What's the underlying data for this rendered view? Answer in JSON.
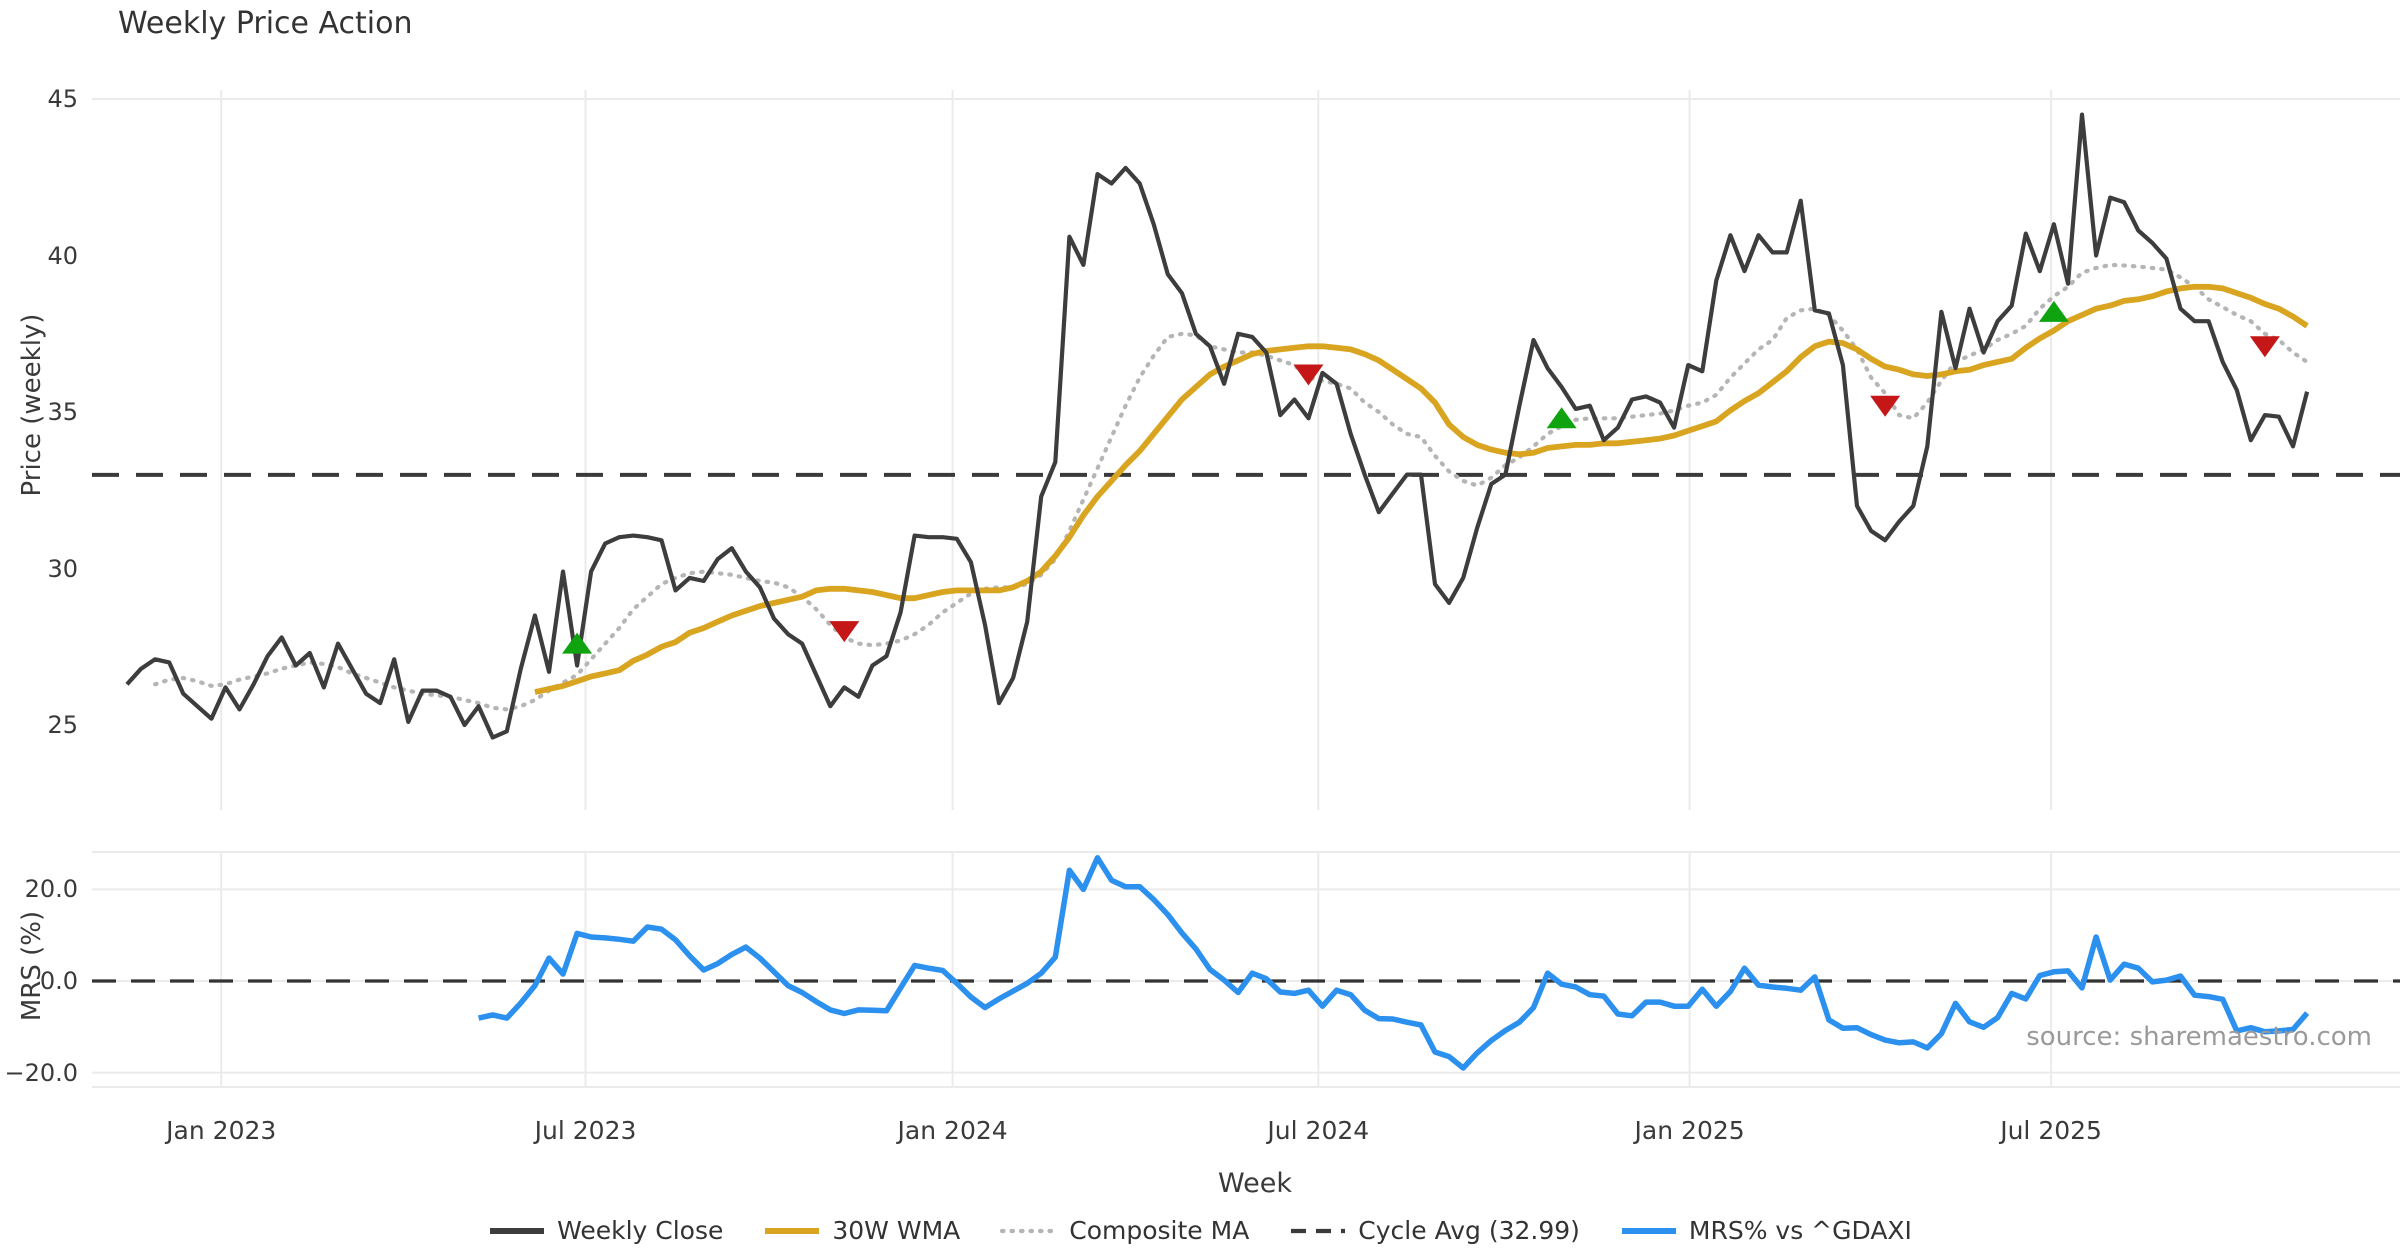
{
  "title": "Weekly Price Action",
  "source_note": "source: sharemaestro.com",
  "axes": {
    "xlabel": "Week",
    "xticks": [
      {
        "week": 6.7,
        "label": "Jan 2023"
      },
      {
        "week": 32.6,
        "label": "Jul 2023"
      },
      {
        "week": 58.7,
        "label": "Jan 2024"
      },
      {
        "week": 84.7,
        "label": "Jul 2024"
      },
      {
        "week": 111.1,
        "label": "Jan 2025"
      },
      {
        "week": 136.8,
        "label": "Jul 2025"
      }
    ],
    "price_panel": {
      "ylabel": "Price (weekly)",
      "yticks": [
        45,
        40,
        35,
        30,
        25
      ],
      "ylim": [
        22.6,
        45.3
      ]
    },
    "mrs_panel": {
      "ylabel": "MRS (%)",
      "ytick_labels": [
        "20.0",
        "0.0",
        "−20.0"
      ],
      "yticks": [
        20,
        0,
        -20
      ],
      "ylim": [
        -23.4,
        28.2
      ]
    }
  },
  "legend": {
    "items": [
      {
        "label": "Weekly Close",
        "color": "#3d3d3d",
        "style": "solid"
      },
      {
        "label": "30W WMA",
        "color": "#d9a521",
        "style": "solid"
      },
      {
        "label": "Composite MA",
        "color": "#b5b5b5",
        "style": "dotted"
      },
      {
        "label": "Cycle Avg (32.99)",
        "color": "#3a3a3a",
        "style": "dashed"
      },
      {
        "label": "MRS% vs ^GDAXI",
        "color": "#2b90ee",
        "style": "solid"
      }
    ]
  },
  "colors": {
    "close": "#3d3d3d",
    "wma": "#d9a521",
    "composite": "#b5b5b5",
    "cycle_avg": "#3a3a3a",
    "mrs": "#2b90ee",
    "buy": "#10a310",
    "sell": "#c51717",
    "grid": "#ebebeb",
    "text": "#3a3a3a",
    "source": "#9a9a9a"
  },
  "chart_data": {
    "type": "line",
    "x_unit": "week_index",
    "n_weeks": 156,
    "cycle_avg": 32.99,
    "grid": true,
    "legend_position": "bottom-center",
    "series": [
      {
        "name": "Weekly Close",
        "panel": "price",
        "color": "#3d3d3d",
        "values": [
          26.3,
          26.8,
          27.1,
          27.0,
          26.0,
          25.6,
          25.2,
          26.2,
          25.5,
          26.3,
          27.2,
          27.8,
          26.9,
          27.3,
          26.2,
          27.6,
          26.8,
          26.0,
          25.7,
          27.1,
          25.1,
          26.1,
          26.1,
          25.9,
          25.0,
          25.6,
          24.6,
          24.8,
          26.8,
          28.5,
          26.7,
          29.9,
          26.9,
          29.9,
          30.8,
          31.0,
          31.05,
          31.0,
          30.9,
          29.3,
          29.7,
          29.6,
          30.3,
          30.65,
          29.9,
          29.4,
          28.4,
          27.9,
          27.6,
          26.6,
          25.6,
          26.2,
          25.9,
          26.9,
          27.2,
          28.6,
          31.05,
          31.0,
          31.0,
          30.95,
          30.2,
          28.2,
          25.7,
          26.5,
          28.3,
          32.3,
          33.4,
          40.6,
          39.7,
          42.6,
          42.3,
          42.8,
          42.3,
          41.0,
          39.4,
          38.8,
          37.5,
          37.1,
          35.9,
          37.5,
          37.4,
          36.9,
          34.9,
          35.4,
          34.8,
          36.25,
          35.9,
          34.3,
          33.0,
          31.8,
          32.4,
          33.0,
          33.0,
          29.5,
          28.9,
          29.7,
          31.3,
          32.7,
          33.0,
          35.2,
          37.3,
          36.4,
          35.8,
          35.1,
          35.2,
          34.1,
          34.5,
          35.4,
          35.5,
          35.3,
          34.5,
          36.5,
          36.3,
          39.2,
          40.65,
          39.5,
          40.65,
          40.1,
          40.1,
          41.75,
          38.25,
          38.15,
          36.5,
          32.0,
          31.2,
          30.9,
          31.5,
          32.0,
          33.9,
          38.2,
          36.4,
          38.3,
          36.9,
          37.9,
          38.4,
          40.7,
          39.5,
          41.0,
          39.1,
          44.5,
          40.0,
          41.85,
          41.7,
          40.8,
          40.4,
          39.9,
          38.3,
          37.9,
          37.9,
          36.6,
          35.7,
          34.1,
          34.9,
          34.85,
          33.9,
          35.65
        ]
      },
      {
        "name": "30W WMA",
        "panel": "price",
        "color": "#d9a521",
        "values": [
          null,
          null,
          null,
          null,
          null,
          null,
          null,
          null,
          null,
          null,
          null,
          null,
          null,
          null,
          null,
          null,
          null,
          null,
          null,
          null,
          null,
          null,
          null,
          null,
          null,
          null,
          null,
          null,
          null,
          26.05,
          26.15,
          26.25,
          26.4,
          26.55,
          26.65,
          26.75,
          27.05,
          27.25,
          27.5,
          27.65,
          27.95,
          28.1,
          28.3,
          28.5,
          28.65,
          28.8,
          28.9,
          29.0,
          29.1,
          29.3,
          29.35,
          29.35,
          29.3,
          29.25,
          29.15,
          29.05,
          29.05,
          29.15,
          29.25,
          29.3,
          29.3,
          29.3,
          29.3,
          29.4,
          29.6,
          29.9,
          30.4,
          31.0,
          31.7,
          32.3,
          32.8,
          33.3,
          33.75,
          34.3,
          34.85,
          35.4,
          35.8,
          36.2,
          36.45,
          36.65,
          36.85,
          36.95,
          37.0,
          37.05,
          37.1,
          37.1,
          37.05,
          37.0,
          36.85,
          36.65,
          36.35,
          36.05,
          35.75,
          35.3,
          34.6,
          34.2,
          33.95,
          33.8,
          33.7,
          33.65,
          33.7,
          33.85,
          33.9,
          33.95,
          33.95,
          34.0,
          34.0,
          34.05,
          34.1,
          34.15,
          34.25,
          34.4,
          34.55,
          34.7,
          35.05,
          35.35,
          35.6,
          35.95,
          36.3,
          36.75,
          37.1,
          37.25,
          37.2,
          37.0,
          36.7,
          36.45,
          36.35,
          36.2,
          36.15,
          36.2,
          36.3,
          36.35,
          36.5,
          36.6,
          36.7,
          37.05,
          37.35,
          37.6,
          37.9,
          38.1,
          38.3,
          38.4,
          38.55,
          38.6,
          38.7,
          38.85,
          38.95,
          39.0,
          39.0,
          38.95,
          38.8,
          38.65,
          38.45,
          38.3,
          38.05,
          37.75
        ]
      },
      {
        "name": "Composite MA",
        "panel": "price",
        "color": "#b5b5b5",
        "values": [
          null,
          null,
          26.3,
          26.45,
          26.5,
          26.4,
          26.25,
          26.3,
          26.45,
          26.55,
          26.65,
          26.8,
          26.9,
          27.0,
          26.95,
          26.85,
          26.65,
          26.5,
          26.35,
          26.2,
          26.1,
          26.0,
          25.95,
          25.9,
          25.8,
          25.7,
          25.55,
          25.5,
          25.6,
          25.8,
          26.1,
          26.35,
          26.6,
          27.1,
          27.6,
          28.1,
          28.7,
          29.1,
          29.5,
          29.7,
          29.85,
          29.9,
          29.85,
          29.8,
          29.7,
          29.6,
          29.55,
          29.4,
          29.1,
          28.7,
          28.2,
          27.8,
          27.6,
          27.55,
          27.6,
          27.7,
          27.9,
          28.2,
          28.6,
          28.9,
          29.2,
          29.35,
          29.4,
          29.4,
          29.5,
          29.8,
          30.3,
          31.2,
          32.2,
          33.2,
          34.2,
          35.2,
          36.1,
          36.8,
          37.4,
          37.5,
          37.45,
          37.1,
          37.0,
          36.9,
          36.9,
          36.8,
          36.65,
          36.5,
          36.1,
          36.0,
          35.9,
          35.75,
          35.3,
          35.0,
          34.6,
          34.3,
          34.2,
          33.6,
          33.1,
          32.8,
          32.65,
          32.9,
          33.3,
          33.55,
          33.9,
          34.3,
          34.55,
          34.75,
          34.8,
          34.8,
          34.8,
          34.85,
          34.9,
          34.95,
          35.05,
          35.2,
          35.3,
          35.55,
          36.1,
          36.55,
          37.0,
          37.3,
          38.0,
          38.25,
          38.3,
          38.1,
          37.6,
          37.0,
          36.1,
          35.6,
          34.9,
          34.8,
          35.3,
          36.0,
          36.6,
          36.8,
          37.0,
          37.3,
          37.5,
          37.75,
          38.3,
          38.7,
          39.0,
          39.45,
          39.6,
          39.7,
          39.68,
          39.65,
          39.6,
          39.55,
          39.3,
          39.0,
          38.6,
          38.35,
          38.1,
          37.9,
          37.5,
          37.3,
          36.9,
          36.6
        ]
      },
      {
        "name": "MRS% vs ^GDAXI",
        "panel": "mrs",
        "color": "#2b90ee",
        "values": [
          null,
          null,
          null,
          null,
          null,
          null,
          null,
          null,
          null,
          null,
          null,
          null,
          null,
          null,
          null,
          null,
          null,
          null,
          null,
          null,
          null,
          null,
          null,
          null,
          null,
          -8.1,
          -7.4,
          -8.1,
          -4.8,
          -1.0,
          5.0,
          1.5,
          10.4,
          9.6,
          9.4,
          9.1,
          8.7,
          11.8,
          11.3,
          9.0,
          5.5,
          2.4,
          3.8,
          5.8,
          7.4,
          5.0,
          2.0,
          -1.0,
          -2.5,
          -4.5,
          -6.3,
          -7.1,
          -6.3,
          -6.4,
          -6.5,
          -1.5,
          3.4,
          2.8,
          2.3,
          -0.5,
          -3.5,
          -5.8,
          -3.9,
          -2.2,
          -0.5,
          1.7,
          5.2,
          24.2,
          20.0,
          26.9,
          22.0,
          20.6,
          20.6,
          17.8,
          14.5,
          10.5,
          7.0,
          2.5,
          0.2,
          -2.5,
          1.7,
          0.5,
          -2.4,
          -2.7,
          -2.0,
          -5.5,
          -2.0,
          -3.0,
          -6.4,
          -8.2,
          -8.3,
          -9.0,
          -9.6,
          -15.5,
          -16.5,
          -19.0,
          -15.7,
          -13.0,
          -10.8,
          -9.0,
          -5.8,
          1.7,
          -0.7,
          -1.3,
          -3.0,
          -3.3,
          -7.2,
          -7.6,
          -4.6,
          -4.6,
          -5.5,
          -5.5,
          -1.8,
          -5.5,
          -2.3,
          2.8,
          -0.9,
          -1.3,
          -1.6,
          -2.0,
          0.9,
          -8.5,
          -10.3,
          -10.2,
          -11.7,
          -12.9,
          -13.5,
          -13.3,
          -14.6,
          -11.5,
          -4.9,
          -8.9,
          -10.1,
          -8.0,
          -2.7,
          -3.9,
          1.2,
          2.0,
          2.2,
          -1.5,
          9.6,
          0.2,
          3.7,
          2.8,
          -0.2,
          0.2,
          1.1,
          -3.1,
          -3.4,
          -4.0,
          -10.9,
          -10.2,
          -11.1,
          -10.9,
          -10.6,
          -7.0
        ]
      }
    ],
    "buy_signals": [
      {
        "week": 32,
        "price": 27.6
      },
      {
        "week": 102,
        "price": 34.8
      },
      {
        "week": 137,
        "price": 38.2
      }
    ],
    "sell_signals": [
      {
        "week": 51,
        "price": 28.0
      },
      {
        "week": 84,
        "price": 36.2
      },
      {
        "week": 125,
        "price": 35.2
      },
      {
        "week": 152,
        "price": 37.1
      }
    ]
  }
}
